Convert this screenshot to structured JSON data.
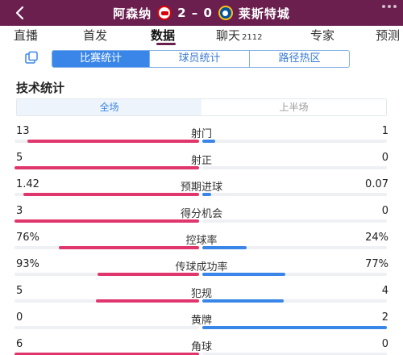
{
  "header": {
    "home_team": "阿森纳",
    "away_team": "莱斯特城",
    "score": "2 – 0"
  },
  "tabs": [
    {
      "label": "直播"
    },
    {
      "label": "首发"
    },
    {
      "label": "数据",
      "active": true
    },
    {
      "label": "聊天",
      "count": "2112"
    },
    {
      "label": "专家"
    },
    {
      "label": "预测"
    }
  ],
  "subtabs": [
    {
      "label": "比赛统计",
      "active": true
    },
    {
      "label": "球员统计"
    },
    {
      "label": "路径热区"
    }
  ],
  "section_title": "技术统计",
  "periods": [
    {
      "label": "全场",
      "active": true
    },
    {
      "label": "上半场"
    }
  ],
  "colors": {
    "header_bg": "#6a1f4f",
    "home_bar": "#e0366e",
    "away_bar": "#3a86e8",
    "accent": "#3a86e8"
  },
  "stats": [
    {
      "name": "射门",
      "home": "13",
      "away": "1",
      "home_ratio": 0.93,
      "away_ratio": 0.07
    },
    {
      "name": "射正",
      "home": "5",
      "away": "0",
      "home_ratio": 1.0,
      "away_ratio": 0.0
    },
    {
      "name": "预期进球",
      "home": "1.42",
      "away": "0.07",
      "home_ratio": 0.95,
      "away_ratio": 0.05
    },
    {
      "name": "得分机会",
      "home": "3",
      "away": "0",
      "home_ratio": 1.0,
      "away_ratio": 0.0
    },
    {
      "name": "控球率",
      "home": "76%",
      "away": "24%",
      "home_ratio": 0.76,
      "away_ratio": 0.24
    },
    {
      "name": "传球成功率",
      "home": "93%",
      "away": "77%",
      "home_ratio": 0.55,
      "away_ratio": 0.45
    },
    {
      "name": "犯规",
      "home": "5",
      "away": "4",
      "home_ratio": 0.56,
      "away_ratio": 0.44
    },
    {
      "name": "黄牌",
      "home": "0",
      "away": "2",
      "home_ratio": 0.0,
      "away_ratio": 1.0
    },
    {
      "name": "角球",
      "home": "6",
      "away": "0",
      "home_ratio": 1.0,
      "away_ratio": 0.0
    }
  ]
}
